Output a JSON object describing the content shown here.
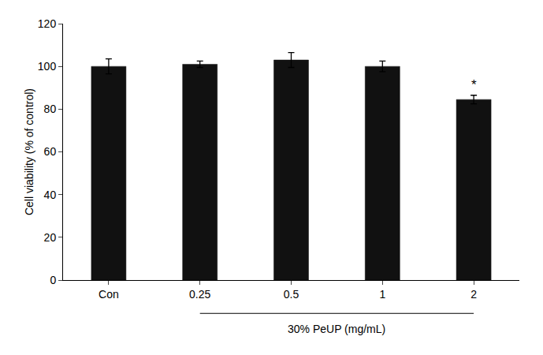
{
  "chart_data": {
    "type": "bar",
    "categories": [
      "Con",
      "0.25",
      "0.5",
      "1",
      "2"
    ],
    "values": [
      100.0,
      101.0,
      103.0,
      100.0,
      84.5
    ],
    "errors": [
      3.5,
      1.5,
      3.5,
      2.5,
      2.0
    ],
    "color": "#111111",
    "ylabel": "Cell viability (% of control)",
    "xlabel": "30% PeUP (mg/mL)",
    "bracket": [
      "0.25",
      "2"
    ],
    "annotations": [
      {
        "text": "*",
        "category": "2"
      }
    ],
    "ylim": [
      0,
      120
    ],
    "yticks": [
      0,
      20,
      40,
      60,
      80,
      100,
      120
    ],
    "grid": false
  }
}
